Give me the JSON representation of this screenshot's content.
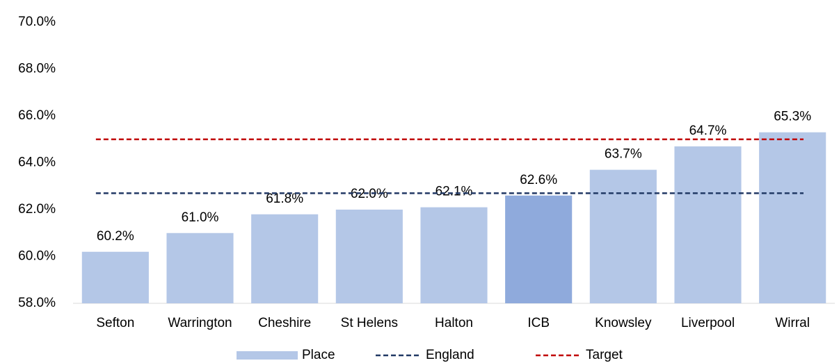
{
  "chart_data": {
    "type": "bar",
    "categories": [
      "Sefton",
      "Warrington",
      "Cheshire",
      "St Helens",
      "Halton",
      "ICB",
      "Knowsley",
      "Liverpool",
      "Wirral"
    ],
    "series": [
      {
        "name": "Place",
        "color": "#b4c7e7",
        "colors": [
          "#b4c7e7",
          "#b4c7e7",
          "#b4c7e7",
          "#b4c7e7",
          "#b4c7e7",
          "#8faadc",
          "#b4c7e7",
          "#b4c7e7",
          "#b4c7e7"
        ],
        "values": [
          60.2,
          61.0,
          61.8,
          62.0,
          62.1,
          62.6,
          63.7,
          64.7,
          65.3
        ],
        "value_labels": [
          "60.2%",
          "61.0%",
          "61.8%",
          "62.0%",
          "62.1%",
          "62.6%",
          "63.7%",
          "64.7%",
          "65.3%"
        ]
      }
    ],
    "reference_lines": [
      {
        "name": "England",
        "color": "#203864",
        "value": 62.7
      },
      {
        "name": "Target",
        "color": "#c00000",
        "value": 65.0
      }
    ],
    "ylim": [
      58,
      70
    ],
    "yticks": [
      {
        "value": 58,
        "label": "58.0%"
      },
      {
        "value": 60,
        "label": "60.0%"
      },
      {
        "value": 62,
        "label": "62.0%"
      },
      {
        "value": 64,
        "label": "64.0%"
      },
      {
        "value": 66,
        "label": "66.0%"
      },
      {
        "value": 68,
        "label": "68.0%"
      },
      {
        "value": 70,
        "label": "70.0%"
      }
    ],
    "grid": false,
    "legend": "bottom"
  }
}
